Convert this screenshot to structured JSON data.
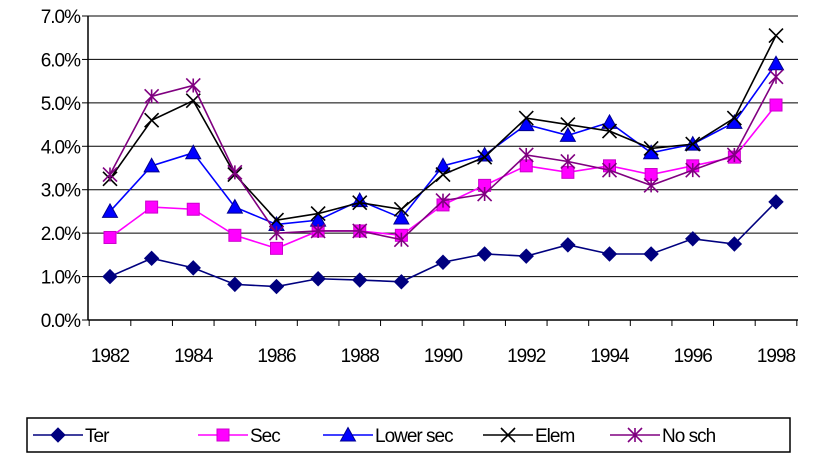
{
  "chart_data": {
    "type": "line",
    "title": "",
    "xlabel": "",
    "ylabel": "",
    "x": [
      1982,
      1983,
      1984,
      1985,
      1986,
      1987,
      1988,
      1989,
      1990,
      1991,
      1992,
      1993,
      1994,
      1995,
      1996,
      1997,
      1998
    ],
    "x_tick_labels": [
      "1982",
      "1984",
      "1986",
      "1988",
      "1990",
      "1992",
      "1994",
      "1996",
      "1998"
    ],
    "y_tick_labels": [
      "0.0%",
      "1.0%",
      "2.0%",
      "3.0%",
      "4.0%",
      "5.0%",
      "6.0%",
      "7.0%"
    ],
    "ylim": [
      0,
      7
    ],
    "y_ticks": [
      0,
      1,
      2,
      3,
      4,
      5,
      6,
      7
    ],
    "grid": "horizontal",
    "legend_position": "bottom",
    "series": [
      {
        "name": "Ter",
        "color": "#00007F",
        "marker": "diamond",
        "values": [
          1.0,
          1.42,
          1.2,
          0.82,
          0.77,
          0.95,
          0.92,
          0.88,
          1.33,
          1.52,
          1.47,
          1.73,
          1.52,
          1.52,
          1.87,
          1.75,
          2.72
        ]
      },
      {
        "name": "Sec",
        "color": "#FF00FF",
        "marker": "square",
        "values": [
          1.9,
          2.6,
          2.55,
          1.95,
          1.65,
          2.05,
          2.05,
          1.95,
          2.65,
          3.1,
          3.55,
          3.4,
          3.55,
          3.35,
          3.55,
          3.75,
          4.95
        ]
      },
      {
        "name": "Lower sec",
        "color": "#0000FF",
        "marker": "triangle",
        "values": [
          2.5,
          3.55,
          3.85,
          2.6,
          2.2,
          2.3,
          2.75,
          2.35,
          3.55,
          3.8,
          4.5,
          4.25,
          4.55,
          3.85,
          4.05,
          4.55,
          5.9
        ]
      },
      {
        "name": "Elem",
        "color": "#000000",
        "marker": "x",
        "values": [
          3.25,
          4.6,
          5.05,
          3.35,
          2.3,
          2.45,
          2.7,
          2.55,
          3.35,
          3.75,
          4.65,
          4.5,
          4.35,
          3.95,
          4.05,
          4.65,
          6.55
        ]
      },
      {
        "name": "No sch",
        "color": "#800080",
        "marker": "star",
        "values": [
          3.35,
          5.15,
          5.4,
          3.4,
          2.0,
          2.05,
          2.05,
          1.85,
          2.75,
          2.9,
          3.8,
          3.65,
          3.45,
          3.1,
          3.45,
          3.8,
          5.6
        ]
      }
    ]
  }
}
